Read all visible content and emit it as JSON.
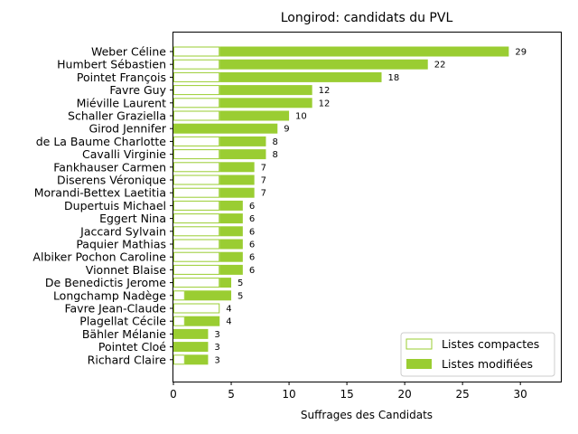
{
  "chart_data": {
    "type": "bar",
    "orientation": "horizontal",
    "stacked": true,
    "title": "Longirod: candidats du PVL",
    "xlabel": "Suffrages des Candidats",
    "ylabel": "",
    "xlim": [
      0,
      33.5
    ],
    "xticks": [
      0,
      5,
      10,
      15,
      20,
      25,
      30
    ],
    "grid": false,
    "legend_position": "bottom-right",
    "colors": {
      "modified": "#9acd32",
      "compact_edge": "#9acd32",
      "compact_fill": "#ffffff"
    },
    "categories": [
      "Weber Céline",
      "Humbert Sébastien",
      "Pointet François",
      "Favre Guy",
      "Miéville Laurent",
      "Schaller Graziella",
      "Girod Jennifer",
      "de La Baume Charlotte",
      "Cavalli Virginie",
      "Fankhauser Carmen",
      "Diserens Véronique",
      "Morandi-Bettex Laetitia",
      "Dupertuis Michael",
      "Eggert Nina",
      "Jaccard Sylvain",
      "Paquier Mathias",
      "Albiker Pochon Caroline",
      "Vionnet Blaise",
      "De Benedictis Jerome",
      "Longchamp Nadège",
      "Favre Jean-Claude",
      "Plagellat Cécile",
      "Bähler Mélanie",
      "Pointet Cloé",
      "Richard Claire"
    ],
    "series": [
      {
        "name": "Listes compactes",
        "values": [
          4,
          4,
          4,
          4,
          4,
          4,
          0,
          4,
          4,
          4,
          4,
          4,
          4,
          4,
          4,
          4,
          4,
          4,
          4,
          1,
          4,
          1,
          0,
          0,
          1
        ]
      },
      {
        "name": "Listes modifiées",
        "values": [
          25,
          18,
          14,
          8,
          8,
          6,
          9,
          4,
          4,
          3,
          3,
          3,
          2,
          2,
          2,
          2,
          2,
          2,
          1,
          4,
          0,
          3,
          3,
          3,
          2
        ]
      }
    ],
    "totals": [
      29,
      22,
      18,
      12,
      12,
      10,
      9,
      8,
      8,
      7,
      7,
      7,
      6,
      6,
      6,
      6,
      6,
      6,
      5,
      5,
      4,
      4,
      3,
      3,
      3
    ]
  }
}
